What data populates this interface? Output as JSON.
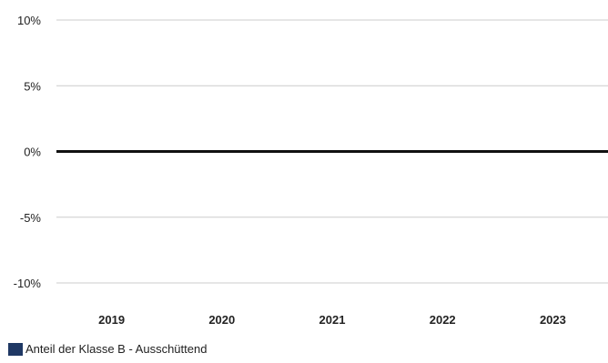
{
  "chart_data": {
    "type": "bar",
    "categories": [
      "2019",
      "2020",
      "2021",
      "2022",
      "2023"
    ],
    "series": [
      {
        "name": "Anteil der Klasse B - Ausschüttend",
        "values": [
          0,
          0,
          0,
          0,
          0
        ],
        "color": "#1f3864"
      }
    ],
    "y_ticks": [
      "10%",
      "5%",
      "0%",
      "-5%",
      "-10%"
    ],
    "ylim": [
      -10,
      10
    ],
    "y_unit": "%",
    "grid": true,
    "grid_color": "#cccccc",
    "zero_line_color": "#111111",
    "legend_position": "bottom-left"
  }
}
